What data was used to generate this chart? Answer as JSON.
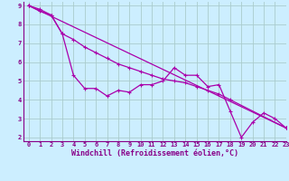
{
  "xlabel": "Windchill (Refroidissement éolien,°C)",
  "xlim": [
    -0.5,
    23
  ],
  "ylim": [
    1.8,
    9.2
  ],
  "yticks": [
    2,
    3,
    4,
    5,
    6,
    7,
    8,
    9
  ],
  "xticks": [
    0,
    1,
    2,
    3,
    4,
    5,
    6,
    7,
    8,
    9,
    10,
    11,
    12,
    13,
    14,
    15,
    16,
    17,
    18,
    19,
    20,
    21,
    22,
    23
  ],
  "bg_color": "#cceeff",
  "grid_color": "#aacccc",
  "line_color": "#aa00aa",
  "line1_x": [
    0,
    1,
    2,
    3,
    4,
    5,
    6,
    7,
    8,
    9,
    10,
    11,
    12,
    13,
    14,
    15,
    16,
    17,
    18,
    19,
    20,
    21,
    22,
    23
  ],
  "line1_y": [
    9.0,
    8.7,
    8.5,
    7.5,
    5.3,
    4.6,
    4.6,
    4.2,
    4.5,
    4.4,
    4.8,
    4.8,
    5.0,
    5.7,
    5.3,
    5.3,
    4.7,
    4.8,
    3.4,
    2.0,
    2.8,
    3.3,
    3.0,
    2.5
  ],
  "line2_x": [
    0,
    1,
    2,
    3,
    4,
    5,
    6,
    7,
    8,
    9,
    10,
    11,
    12,
    13,
    14,
    15,
    16,
    17,
    18,
    23
  ],
  "line2_y": [
    9.0,
    8.8,
    8.5,
    7.5,
    7.2,
    6.8,
    6.5,
    6.2,
    5.9,
    5.7,
    5.5,
    5.3,
    5.1,
    5.0,
    4.9,
    4.7,
    4.5,
    4.3,
    4.0,
    2.5
  ],
  "line3_x": [
    0,
    23
  ],
  "line3_y": [
    9.0,
    2.5
  ],
  "font_color": "#880088",
  "tick_fontsize": 5.0,
  "xlabel_fontsize": 6.0
}
